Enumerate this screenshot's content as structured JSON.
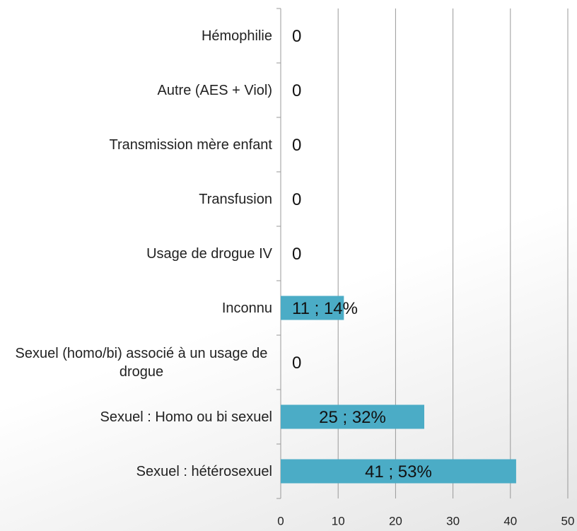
{
  "chart_data": {
    "type": "bar",
    "orientation": "horizontal",
    "categories": [
      "Hémophilie",
      "Autre (AES + Viol)",
      "Transmission mère enfant",
      "Transfusion",
      "Usage de drogue IV",
      "Inconnu",
      "Sexuel (homo/bi) associé à un usage de drogue",
      "Sexuel : Homo ou bi sexuel",
      "Sexuel : hétérosexuel"
    ],
    "values": [
      0,
      0,
      0,
      0,
      0,
      11,
      0,
      25,
      41
    ],
    "value_labels": [
      "0",
      "0",
      "0",
      "0",
      "0",
      "11 ; 14%",
      "0",
      "25 ; 32%",
      "41 ; 53%"
    ],
    "color": "#4bacc6",
    "xlim": [
      0,
      50
    ],
    "xticks": [
      0,
      10,
      20,
      30,
      40,
      50
    ],
    "grid": true
  }
}
